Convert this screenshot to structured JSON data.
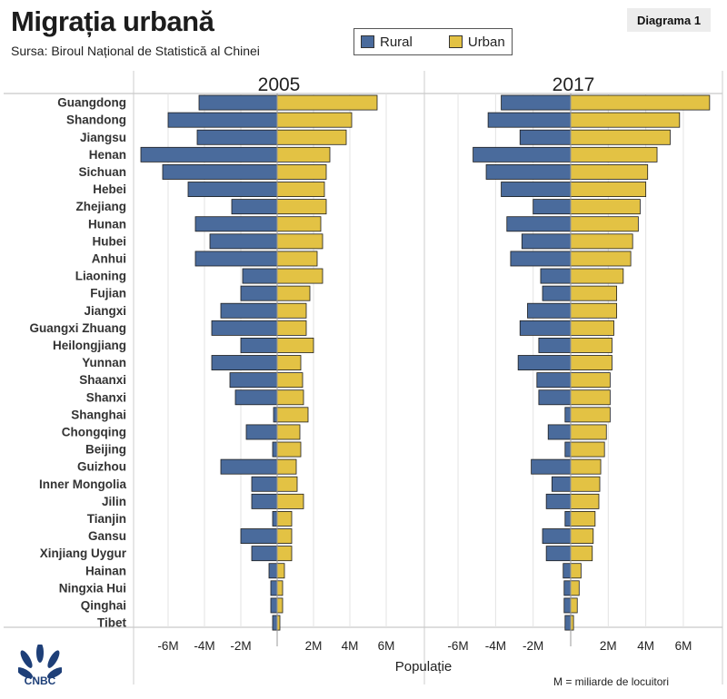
{
  "header": {
    "title": "Migrația urbană",
    "subtitle": "Sursa: Biroul Național de Statistică al Chinei",
    "badge": "Diagrama 1"
  },
  "legend": {
    "rural": "Rural",
    "urban": "Urban"
  },
  "colors": {
    "rural": "#4a6b9c",
    "urban": "#e3c244",
    "bar_stroke": "#1e1e1e"
  },
  "footer": {
    "note": "M = miliarde de locuitori",
    "logo_text": "CNBC"
  },
  "chart_data": {
    "type": "bar",
    "orientation": "horizontal-diverging",
    "xlabel": "Populație",
    "unit": "M",
    "xlim": [
      -7.4,
      7.6
    ],
    "xticks": [
      -6,
      -4,
      -2,
      2,
      4,
      6
    ],
    "xtick_labels": [
      "-6M",
      "-4M",
      "-2M",
      "2M",
      "4M",
      "6M"
    ],
    "categories": [
      "Guangdong",
      "Shandong",
      "Jiangsu",
      "Henan",
      "Sichuan",
      "Hebei",
      "Zhejiang",
      "Hunan",
      "Hubei",
      "Anhui",
      "Liaoning",
      "Fujian",
      "Jiangxi",
      "Guangxi Zhuang",
      "Heilongjiang",
      "Yunnan",
      "Shaanxi",
      "Shanxi",
      "Shanghai",
      "Chongqing",
      "Beijing",
      "Guizhou",
      "Inner Mongolia",
      "Jilin",
      "Tianjin",
      "Gansu",
      "Xinjiang Uygur",
      "Hainan",
      "Ningxia Hui",
      "Qinghai",
      "Tibet"
    ],
    "panels": [
      {
        "title": "2005",
        "series": [
          {
            "name": "Rural",
            "values": [
              -4.3,
              -6.0,
              -4.4,
              -7.5,
              -6.3,
              -4.9,
              -2.5,
              -4.5,
              -3.7,
              -4.5,
              -1.9,
              -2.0,
              -3.1,
              -3.6,
              -2.0,
              -3.6,
              -2.6,
              -2.3,
              -0.2,
              -1.7,
              -0.25,
              -3.1,
              -1.4,
              -1.4,
              -0.25,
              -2.0,
              -1.4,
              -0.45,
              -0.35,
              -0.35,
              -0.25
            ]
          },
          {
            "name": "Urban",
            "values": [
              5.5,
              4.1,
              3.8,
              2.9,
              2.7,
              2.6,
              2.7,
              2.4,
              2.5,
              2.2,
              2.5,
              1.8,
              1.6,
              1.6,
              2.0,
              1.3,
              1.4,
              1.45,
              1.7,
              1.25,
              1.3,
              1.05,
              1.1,
              1.45,
              0.8,
              0.8,
              0.8,
              0.4,
              0.3,
              0.3,
              0.15
            ]
          }
        ]
      },
      {
        "title": "2017",
        "series": [
          {
            "name": "Rural",
            "values": [
              -3.7,
              -4.4,
              -2.7,
              -5.2,
              -4.5,
              -3.7,
              -2.0,
              -3.4,
              -2.6,
              -3.2,
              -1.6,
              -1.5,
              -2.3,
              -2.7,
              -1.7,
              -2.8,
              -1.8,
              -1.7,
              -0.3,
              -1.2,
              -0.3,
              -2.1,
              -1.0,
              -1.3,
              -0.3,
              -1.5,
              -1.3,
              -0.4,
              -0.35,
              -0.35,
              -0.3
            ]
          },
          {
            "name": "Urban",
            "values": [
              7.4,
              5.8,
              5.3,
              4.6,
              4.1,
              4.0,
              3.7,
              3.6,
              3.3,
              3.2,
              2.8,
              2.45,
              2.45,
              2.3,
              2.2,
              2.2,
              2.1,
              2.1,
              2.1,
              1.9,
              1.8,
              1.6,
              1.55,
              1.5,
              1.3,
              1.2,
              1.15,
              0.55,
              0.45,
              0.35,
              0.15
            ]
          }
        ]
      }
    ]
  }
}
